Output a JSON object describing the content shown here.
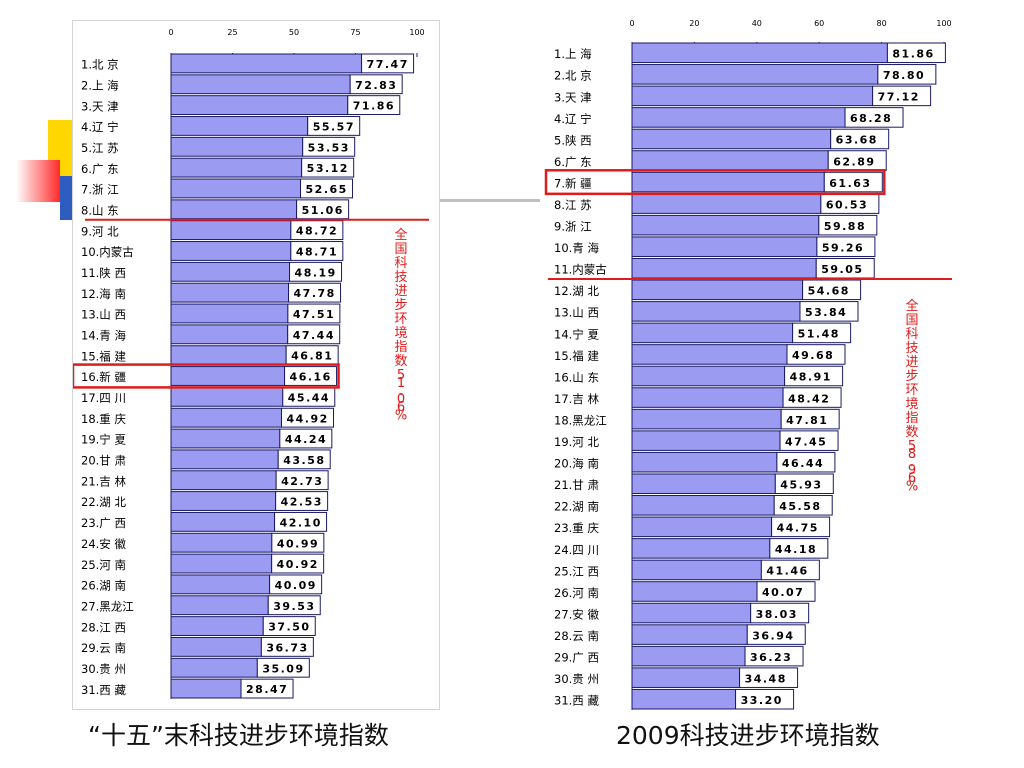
{
  "colors": {
    "bar_fill": "#9b9bf2",
    "bar_stroke": "#1a1a66",
    "highlight": "#e01b1b",
    "annotation_text": "#e01b1b",
    "text": "#000000",
    "decor_yellow": "#ffd700",
    "decor_blue": "#2e5dbf",
    "decor_red": "#ff3b3b",
    "decor_gray": "#c0c0c0"
  },
  "captions": {
    "left": "“十五”末科技进步环境指数",
    "right": "2009科技进步环境指数"
  },
  "chart_data": [
    {
      "type": "bar",
      "orientation": "horizontal",
      "title": "",
      "xlim": [
        0,
        100
      ],
      "xticks": [
        "0",
        "25",
        "50",
        "75",
        "100"
      ],
      "categories": [
        "1.北  京",
        "2.上  海",
        "3.天  津",
        "4.辽  宁",
        "5.江  苏",
        "6.广  东",
        "7.浙  江",
        "8.山  东",
        "9.河  北",
        "10.内蒙古",
        "11.陕  西",
        "12.海  南",
        "13.山  西",
        "14.青  海",
        "15.福  建",
        "16.新  疆",
        "17.四  川",
        "18.重  庆",
        "19.宁  夏",
        "20.甘  肃",
        "21.吉  林",
        "22.湖  北",
        "23.广  西",
        "24.安  徽",
        "25.河  南",
        "26.湖  南",
        "27.黑龙江",
        "28.江  西",
        "29.云  南",
        "30.贵  州",
        "31.西  藏"
      ],
      "values": [
        77.47,
        72.83,
        71.86,
        55.57,
        53.53,
        53.12,
        52.65,
        51.06,
        48.72,
        48.71,
        48.19,
        47.78,
        47.51,
        47.44,
        46.81,
        46.16,
        45.44,
        44.92,
        44.24,
        43.58,
        42.73,
        42.53,
        42.1,
        40.99,
        40.92,
        40.09,
        39.53,
        37.5,
        36.73,
        35.09,
        28.47
      ],
      "value_labels": [
        "77.47",
        "72.83",
        "71.86",
        "55.57",
        "53.53",
        "53.12",
        "52.65",
        "51.06",
        "48.72",
        "48.71",
        "48.19",
        "47.78",
        "47.51",
        "47.44",
        "46.81",
        "46.16",
        "45.44",
        "44.92",
        "44.24",
        "43.58",
        "42.73",
        "42.53",
        "42.10",
        "40.99",
        "40.92",
        "40.09",
        "39.53",
        "37.50",
        "36.73",
        "35.09",
        "28.47"
      ],
      "highlight_index": 15,
      "threshold_after_index": 7,
      "annotation": "全国科技进步环境指数51.06%"
    },
    {
      "type": "bar",
      "orientation": "horizontal",
      "title": "",
      "xlim": [
        0,
        100
      ],
      "xticks": [
        "0",
        "20",
        "40",
        "60",
        "80",
        "100"
      ],
      "categories": [
        "1.上  海",
        "2.北  京",
        "3.天  津",
        "4.辽  宁",
        "5.陕  西",
        "6.广  东",
        "7.新  疆",
        "8.江  苏",
        "9.浙  江",
        "10.青  海",
        "11.内蒙古",
        "12.湖  北",
        "13.山  西",
        "14.宁  夏",
        "15.福  建",
        "16.山  东",
        "17.吉  林",
        "18.黑龙江",
        "19.河  北",
        "20.海  南",
        "21.甘  肃",
        "22.湖  南",
        "23.重  庆",
        "24.四  川",
        "25.江  西",
        "26.河  南",
        "27.安  徽",
        "28.云  南",
        "29.广  西",
        "30.贵  州",
        "31.西  藏"
      ],
      "values": [
        81.86,
        78.8,
        77.12,
        68.28,
        63.68,
        62.89,
        61.63,
        60.53,
        59.88,
        59.26,
        59.05,
        54.68,
        53.84,
        51.48,
        49.68,
        48.91,
        48.42,
        47.81,
        47.45,
        46.44,
        45.93,
        45.58,
        44.75,
        44.18,
        41.46,
        40.07,
        38.03,
        36.94,
        36.23,
        34.48,
        33.2
      ],
      "value_labels": [
        "81.86",
        "78.80",
        "77.12",
        "68.28",
        "63.68",
        "62.89",
        "61.63",
        "60.53",
        "59.88",
        "59.26",
        "59.05",
        "54.68",
        "53.84",
        "51.48",
        "49.68",
        "48.91",
        "48.42",
        "47.81",
        "47.45",
        "46.44",
        "45.93",
        "45.58",
        "44.75",
        "44.18",
        "41.46",
        "40.07",
        "38.03",
        "36.94",
        "36.23",
        "34.48",
        "33.20"
      ],
      "highlight_index": 6,
      "threshold_after_index": 10,
      "annotation": "全国科技进步环境指数58.96%"
    }
  ]
}
